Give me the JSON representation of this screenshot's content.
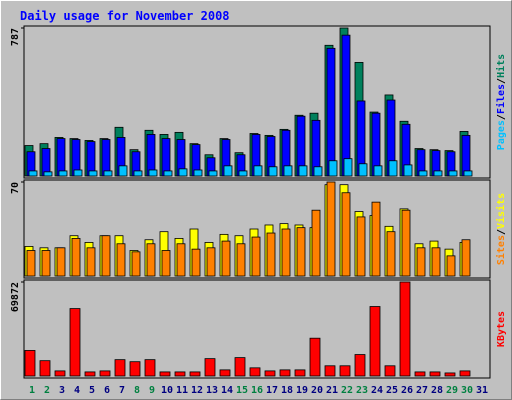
{
  "chart_data": [
    {
      "type": "bar",
      "title": "Daily usage for November 2008",
      "ylim": [
        0,
        787
      ],
      "yticks": [
        787
      ],
      "legend_separator": "/",
      "series": [
        {
          "name": "Hits",
          "color": "#00805c",
          "values": [
            162,
            172,
            205,
            199,
            189,
            199,
            259,
            140,
            243,
            221,
            232,
            172,
            113,
            199,
            124,
            226,
            216,
            248,
            323,
            334,
            695,
            787,
            604,
            340,
            431,
            291,
            146,
            140,
            135,
            237,
            null
          ]
        },
        {
          "name": "Files",
          "color": "#0000ff",
          "values": [
            129,
            146,
            199,
            194,
            183,
            194,
            205,
            129,
            221,
            199,
            194,
            167,
            97,
            194,
            113,
            221,
            210,
            243,
            318,
            296,
            679,
            749,
            399,
            334,
            404,
            275,
            140,
            135,
            129,
            216,
            null
          ]
        },
        {
          "name": "Pages",
          "color": "#00c0ff",
          "values": [
            27,
            22,
            27,
            32,
            27,
            27,
            54,
            27,
            32,
            27,
            38,
            32,
            27,
            54,
            27,
            54,
            49,
            54,
            54,
            49,
            81,
            92,
            65,
            54,
            81,
            59,
            27,
            27,
            27,
            27,
            null
          ]
        }
      ]
    },
    {
      "type": "bar",
      "ylim": [
        0,
        70
      ],
      "yticks": [
        70
      ],
      "legend_separator": "/",
      "series": [
        {
          "name": "Visits",
          "color": "#ffff00",
          "values": [
            22,
            21,
            21,
            30,
            25,
            30,
            30,
            19,
            27,
            33,
            28,
            35,
            25,
            31,
            30,
            35,
            38,
            39,
            38,
            36,
            68,
            68,
            48,
            45,
            37,
            50,
            24,
            26,
            20,
            25,
            null
          ]
        },
        {
          "name": "Sites",
          "color": "#ff8000",
          "values": [
            19,
            19,
            21,
            28,
            21,
            30,
            24,
            18,
            24,
            19,
            24,
            20,
            21,
            26,
            24,
            29,
            32,
            35,
            36,
            49,
            70,
            62,
            44,
            55,
            33,
            49,
            21,
            21,
            15,
            27,
            null
          ]
        }
      ]
    },
    {
      "type": "bar",
      "ylim": [
        0,
        69872
      ],
      "yticks": [
        69872
      ],
      "categories": [
        "1",
        "2",
        "3",
        "4",
        "5",
        "6",
        "7",
        "8",
        "9",
        "10",
        "11",
        "12",
        "13",
        "14",
        "15",
        "16",
        "17",
        "18",
        "19",
        "20",
        "21",
        "22",
        "23",
        "24",
        "25",
        "26",
        "27",
        "28",
        "29",
        "30",
        "31"
      ],
      "category_colors": [
        "#008040",
        "#008040",
        "#000080",
        "#000080",
        "#000080",
        "#000080",
        "#000080",
        "#008040",
        "#008040",
        "#000080",
        "#000080",
        "#000080",
        "#000080",
        "#000080",
        "#008040",
        "#008040",
        "#000080",
        "#000080",
        "#000080",
        "#000080",
        "#000080",
        "#008040",
        "#008040",
        "#000080",
        "#000080",
        "#000080",
        "#000080",
        "#000080",
        "#008040",
        "#008040",
        "#000080"
      ],
      "series": [
        {
          "name": "KBytes",
          "color": "#ff0000",
          "values": [
            18988,
            11393,
            3797,
            50127,
            3038,
            3797,
            12152,
            10633,
            12152,
            3038,
            3038,
            3038,
            12912,
            4557,
            13671,
            6076,
            3797,
            4557,
            4557,
            28101,
            7595,
            7595,
            15950,
            51646,
            7595,
            69872,
            3038,
            3038,
            2278,
            3797,
            null
          ]
        }
      ]
    }
  ]
}
